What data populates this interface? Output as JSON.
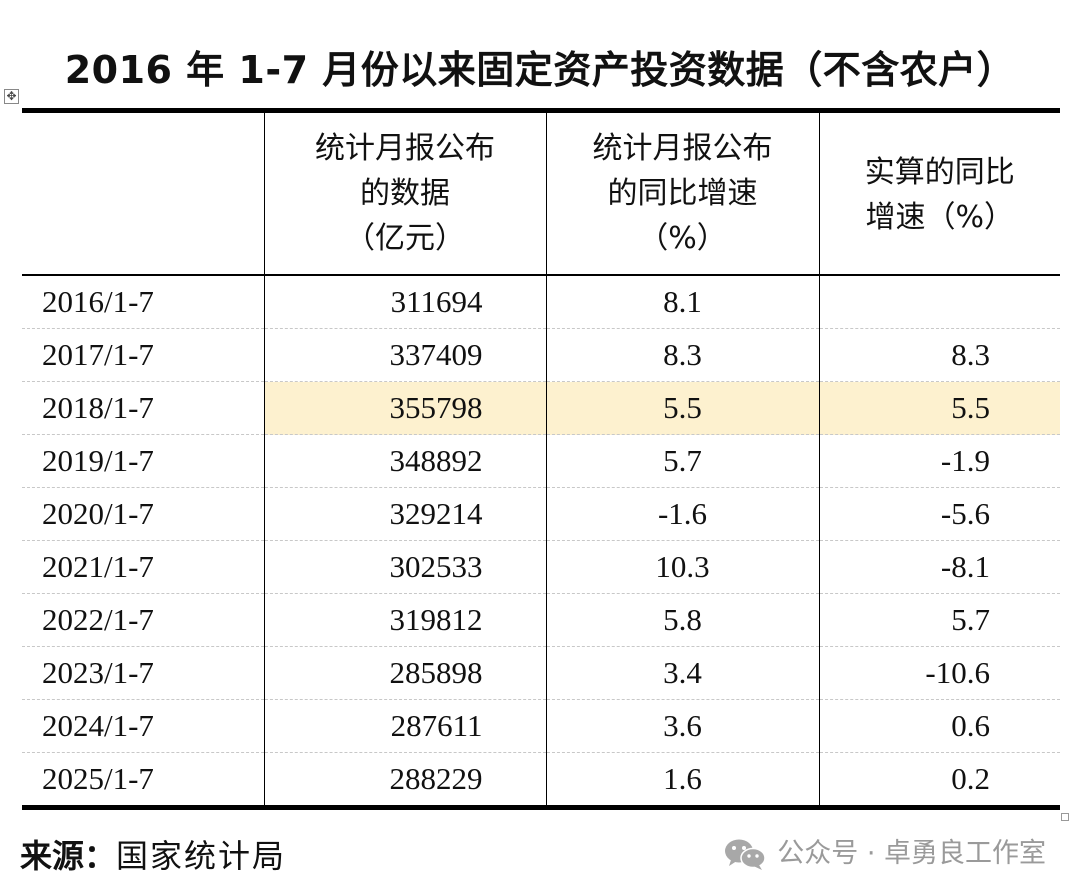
{
  "title": "2016 年 1-7 月份以来固定资产投资数据（不含农户）",
  "table": {
    "headers": [
      "",
      "统计月报公布\n的数据\n（亿元）",
      "统计月报公布\n的同比增速\n（%）",
      "实算的同比\n增速（%）"
    ],
    "rows": [
      {
        "period": "2016/1-7",
        "amount": "311694",
        "reported_growth": "8.1",
        "computed_growth": ""
      },
      {
        "period": "2017/1-7",
        "amount": "337409",
        "reported_growth": "8.3",
        "computed_growth": "8.3"
      },
      {
        "period": "2018/1-7",
        "amount": "355798",
        "reported_growth": "5.5",
        "computed_growth": "5.5"
      },
      {
        "period": "2019/1-7",
        "amount": "348892",
        "reported_growth": "5.7",
        "computed_growth": "-1.9"
      },
      {
        "period": "2020/1-7",
        "amount": "329214",
        "reported_growth": "-1.6",
        "computed_growth": "-5.6"
      },
      {
        "period": "2021/1-7",
        "amount": "302533",
        "reported_growth": "10.3",
        "computed_growth": "-8.1"
      },
      {
        "period": "2022/1-7",
        "amount": "319812",
        "reported_growth": "5.8",
        "computed_growth": "5.7"
      },
      {
        "period": "2023/1-7",
        "amount": "285898",
        "reported_growth": "3.4",
        "computed_growth": "-10.6"
      },
      {
        "period": "2024/1-7",
        "amount": "287611",
        "reported_growth": "3.6",
        "computed_growth": "0.6"
      },
      {
        "period": "2025/1-7",
        "amount": "288229",
        "reported_growth": "1.6",
        "computed_growth": "0.2"
      }
    ],
    "highlight_row": "2018/1-7",
    "highlight_color": "#fdf1cf"
  },
  "source": {
    "label": "来源：",
    "value": "国家统计局"
  },
  "watermark": {
    "icon": "wechat-icon",
    "text": "公众号 · 卓勇良工作室"
  },
  "table_move_handle": {
    "icon": "move-icon",
    "glyph": "✥"
  }
}
